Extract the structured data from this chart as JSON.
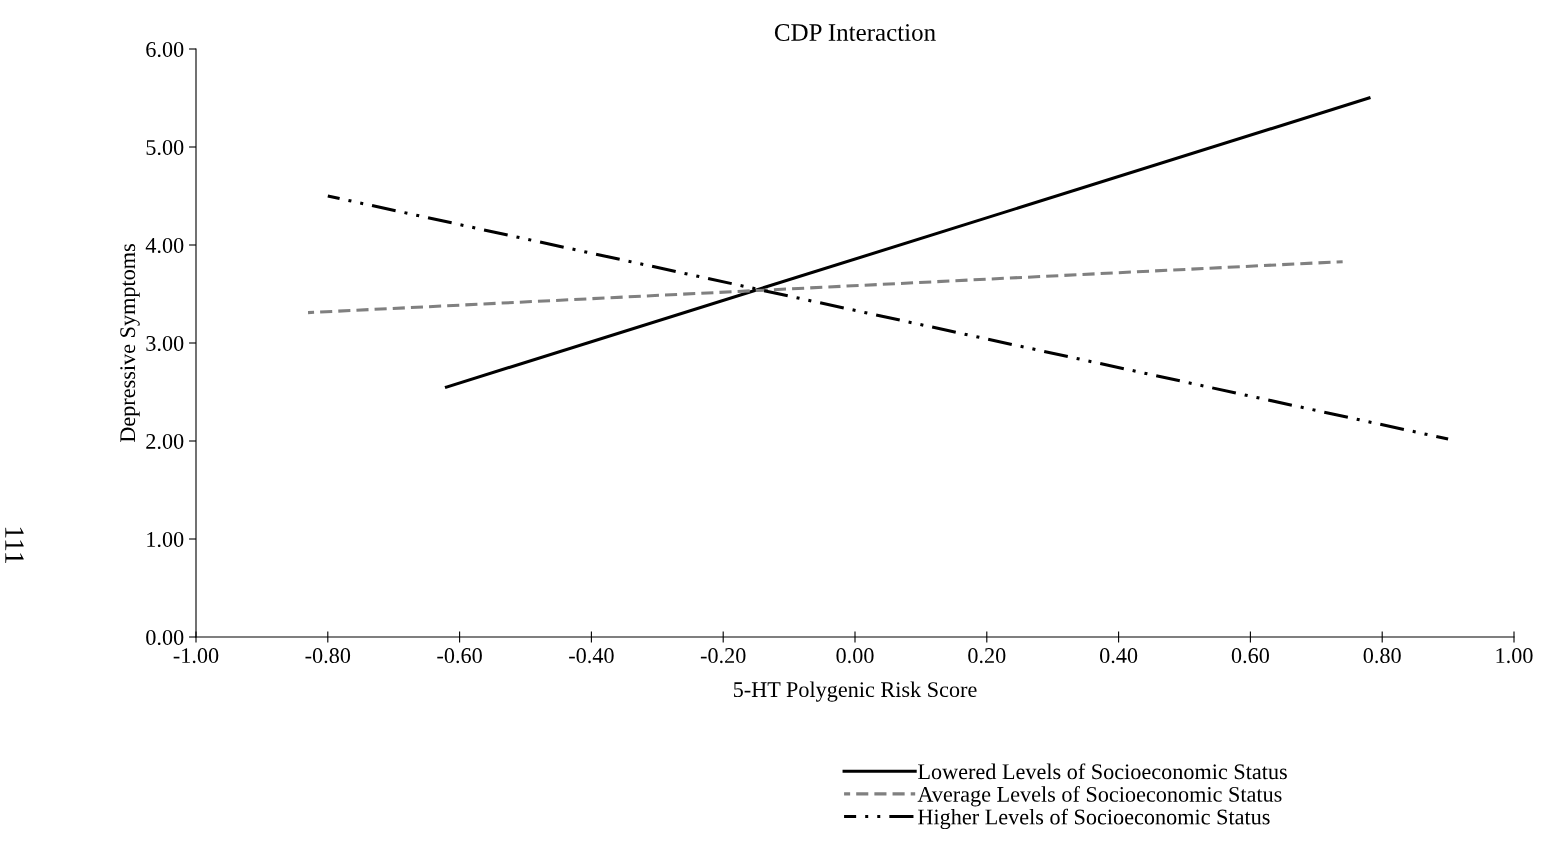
{
  "chart_data": {
    "type": "line",
    "title": "CDP Interaction",
    "xlabel": "5-HT Polygenic Risk Score",
    "ylabel": "Depressive Symptoms",
    "series": [
      {
        "name": "Lowered Levels of Socioeconomic Status",
        "color": "#000000",
        "line_style": "solid",
        "x": [
          -0.62,
          0.78
        ],
        "values": [
          2.55,
          5.5
        ]
      },
      {
        "name": "Average Levels of Socioeconomic Status",
        "color": "#808080",
        "line_style": "dashed",
        "x": [
          -0.83,
          0.74
        ],
        "values": [
          3.31,
          3.83
        ]
      },
      {
        "name": "Higher Levels of Socioeconomic Status",
        "color": "#000000",
        "line_style": "dashdotdot",
        "x": [
          -0.8,
          0.9
        ],
        "values": [
          4.5,
          2.02
        ]
      }
    ],
    "xlim": [
      -1.0,
      1.0
    ],
    "ylim": [
      0.0,
      6.0
    ],
    "xticks": [
      {
        "value": -1.0,
        "label": "-1.00"
      },
      {
        "value": -0.8,
        "label": "-0.80"
      },
      {
        "value": -0.6,
        "label": "-0.60"
      },
      {
        "value": -0.4,
        "label": "-0.40"
      },
      {
        "value": -0.2,
        "label": "-0.20"
      },
      {
        "value": 0.0,
        "label": "0.00"
      },
      {
        "value": 0.2,
        "label": "0.20"
      },
      {
        "value": 0.4,
        "label": "0.40"
      },
      {
        "value": 0.6,
        "label": "0.60"
      },
      {
        "value": 0.8,
        "label": "0.80"
      },
      {
        "value": 1.0,
        "label": "1.00"
      }
    ],
    "yticks": [
      {
        "value": 0.0,
        "label": "0.00"
      },
      {
        "value": 1.0,
        "label": "1.00"
      },
      {
        "value": 2.0,
        "label": "2.00"
      },
      {
        "value": 3.0,
        "label": "3.00"
      },
      {
        "value": 4.0,
        "label": "4.00"
      },
      {
        "value": 5.0,
        "label": "5.00"
      },
      {
        "value": 6.0,
        "label": "6.00"
      }
    ],
    "grid": false,
    "legend": "bottom",
    "marker": "none",
    "annotations": [
      "111"
    ]
  }
}
